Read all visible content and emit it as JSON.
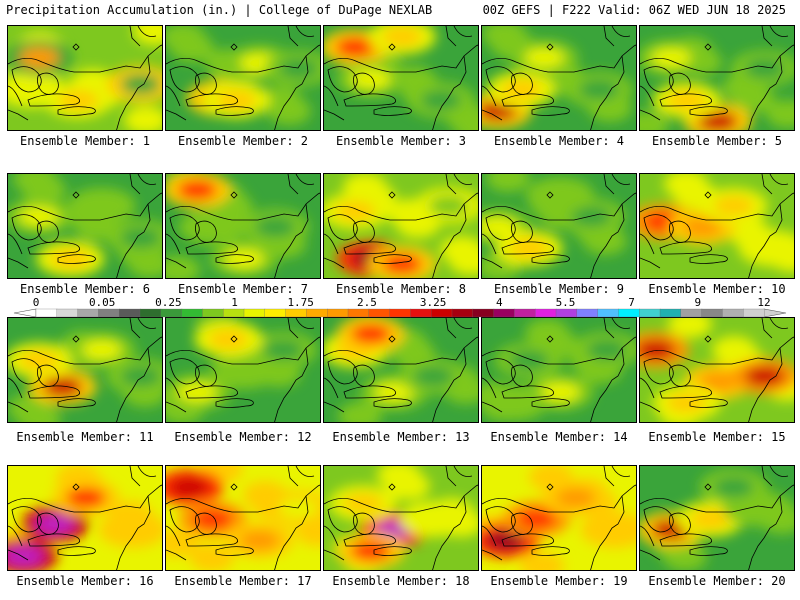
{
  "header": {
    "title": "Precipitation Accumulation (in.) | College of DuPage NEXLAB",
    "run_info": "00Z GEFS | F222 Valid: 06Z WED JUN 18 2025"
  },
  "caption_prefix": "Ensemble Member: ",
  "members": [
    {
      "label": "Ensemble Member: 1",
      "palette": [
        "#7ec81f",
        "#e9f400",
        "#ffcc00",
        "#3aa43a",
        "#ff9a00"
      ],
      "blobs": [
        [
          0.15,
          0.6,
          1
        ],
        [
          0.45,
          0.7,
          2
        ],
        [
          0.2,
          0.3,
          4
        ],
        [
          0.85,
          0.55,
          3
        ]
      ]
    },
    {
      "label": "Ensemble Member: 2",
      "palette": [
        "#3aa43a",
        "#7ec81f",
        "#e9f400",
        "#ffcc00",
        "#d01818"
      ],
      "blobs": [
        [
          0.35,
          0.68,
          4
        ],
        [
          0.45,
          0.7,
          3
        ],
        [
          0.6,
          0.35,
          2
        ],
        [
          0.85,
          0.4,
          0
        ]
      ]
    },
    {
      "label": "Ensemble Member: 3",
      "palette": [
        "#3aa43a",
        "#7ec81f",
        "#e9f400",
        "#ffcc00",
        "#ff3300"
      ],
      "blobs": [
        [
          0.2,
          0.2,
          4
        ],
        [
          0.5,
          0.1,
          3
        ],
        [
          0.3,
          0.5,
          2
        ],
        [
          0.75,
          0.7,
          0
        ]
      ]
    },
    {
      "label": "Ensemble Member: 4",
      "palette": [
        "#3aa43a",
        "#7ec81f",
        "#e9f400",
        "#ffcc00",
        "#cc0000"
      ],
      "blobs": [
        [
          0.1,
          0.8,
          4
        ],
        [
          0.25,
          0.6,
          3
        ],
        [
          0.4,
          0.3,
          2
        ],
        [
          0.75,
          0.6,
          0
        ]
      ]
    },
    {
      "label": "Ensemble Member: 5",
      "palette": [
        "#3aa43a",
        "#7ec81f",
        "#e9f400",
        "#ffcc00",
        "#cc0000"
      ],
      "blobs": [
        [
          0.5,
          0.9,
          4
        ],
        [
          0.3,
          0.7,
          3
        ],
        [
          0.2,
          0.3,
          2
        ],
        [
          0.8,
          0.4,
          0
        ]
      ]
    },
    {
      "label": "Ensemble Member: 6",
      "palette": [
        "#3aa43a",
        "#7ec81f",
        "#e9f400",
        "#ffcc00",
        "#ff9a00"
      ],
      "blobs": [
        [
          0.2,
          0.4,
          2
        ],
        [
          0.6,
          0.3,
          1
        ],
        [
          0.4,
          0.8,
          3
        ],
        [
          0.85,
          0.6,
          0
        ]
      ]
    },
    {
      "label": "Ensemble Member: 7",
      "palette": [
        "#3aa43a",
        "#7ec81f",
        "#e9f400",
        "#ffcc00",
        "#ff3300"
      ],
      "blobs": [
        [
          0.2,
          0.15,
          4
        ],
        [
          0.3,
          0.5,
          1
        ],
        [
          0.7,
          0.5,
          0
        ],
        [
          0.5,
          0.8,
          2
        ]
      ]
    },
    {
      "label": "Ensemble Member: 8",
      "palette": [
        "#7ec81f",
        "#e9f400",
        "#ffcc00",
        "#ff3300",
        "#990020"
      ],
      "blobs": [
        [
          0.3,
          0.8,
          4
        ],
        [
          0.5,
          0.85,
          3
        ],
        [
          0.2,
          0.35,
          2
        ],
        [
          0.8,
          0.3,
          0
        ]
      ]
    },
    {
      "label": "Ensemble Member: 9",
      "palette": [
        "#3aa43a",
        "#7ec81f",
        "#e9f400",
        "#ffcc00",
        "#ff9a00"
      ],
      "blobs": [
        [
          0.1,
          0.5,
          2
        ],
        [
          0.3,
          0.7,
          3
        ],
        [
          0.7,
          0.4,
          0
        ],
        [
          0.5,
          0.2,
          1
        ]
      ]
    },
    {
      "label": "Ensemble Member: 10",
      "palette": [
        "#7ec81f",
        "#e9f400",
        "#ffcc00",
        "#ff9a00",
        "#ff3300"
      ],
      "blobs": [
        [
          0.15,
          0.45,
          4
        ],
        [
          0.4,
          0.5,
          3
        ],
        [
          0.6,
          0.3,
          2
        ],
        [
          0.85,
          0.7,
          1
        ]
      ]
    },
    {
      "label": "Ensemble Member: 11",
      "palette": [
        "#3aa43a",
        "#7ec81f",
        "#e9f400",
        "#ffcc00",
        "#cc0000"
      ],
      "blobs": [
        [
          0.35,
          0.65,
          4
        ],
        [
          0.2,
          0.4,
          3
        ],
        [
          0.6,
          0.3,
          2
        ],
        [
          0.85,
          0.55,
          0
        ]
      ]
    },
    {
      "label": "Ensemble Member: 12",
      "palette": [
        "#3aa43a",
        "#7ec81f",
        "#e9f400",
        "#ffcc00",
        "#ff9a00"
      ],
      "blobs": [
        [
          0.2,
          0.7,
          2
        ],
        [
          0.5,
          0.5,
          1
        ],
        [
          0.75,
          0.3,
          0
        ],
        [
          0.4,
          0.2,
          3
        ]
      ]
    },
    {
      "label": "Ensemble Member: 13",
      "palette": [
        "#3aa43a",
        "#7ec81f",
        "#e9f400",
        "#ffcc00",
        "#ff3300"
      ],
      "blobs": [
        [
          0.2,
          0.3,
          3
        ],
        [
          0.45,
          0.7,
          2
        ],
        [
          0.7,
          0.55,
          0
        ],
        [
          0.3,
          0.15,
          4
        ]
      ]
    },
    {
      "label": "Ensemble Member: 14",
      "palette": [
        "#3aa43a",
        "#7ec81f",
        "#e9f400",
        "#ffcc00",
        "#ff9a00"
      ],
      "blobs": [
        [
          0.3,
          0.4,
          0
        ],
        [
          0.5,
          0.7,
          2
        ],
        [
          0.2,
          0.8,
          1
        ],
        [
          0.8,
          0.3,
          0
        ]
      ]
    },
    {
      "label": "Ensemble Member: 15",
      "palette": [
        "#7ec81f",
        "#e9f400",
        "#ffcc00",
        "#ff9a00",
        "#cc0000"
      ],
      "blobs": [
        [
          0.1,
          0.3,
          4
        ],
        [
          0.5,
          0.6,
          3
        ],
        [
          0.8,
          0.55,
          4
        ],
        [
          0.3,
          0.8,
          2
        ]
      ]
    },
    {
      "label": "Ensemble Member: 16",
      "palette": [
        "#e9f400",
        "#ffcc00",
        "#ff3300",
        "#cc0000",
        "#c020c0"
      ],
      "blobs": [
        [
          0.3,
          0.55,
          4
        ],
        [
          0.1,
          0.85,
          4
        ],
        [
          0.5,
          0.3,
          2
        ],
        [
          0.8,
          0.6,
          1
        ]
      ]
    },
    {
      "label": "Ensemble Member: 17",
      "palette": [
        "#e9f400",
        "#ffcc00",
        "#ff9a00",
        "#ff3300",
        "#cc0000"
      ],
      "blobs": [
        [
          0.15,
          0.2,
          4
        ],
        [
          0.3,
          0.5,
          3
        ],
        [
          0.6,
          0.7,
          2
        ],
        [
          0.85,
          0.4,
          0
        ]
      ]
    },
    {
      "label": "Ensemble Member: 18",
      "palette": [
        "#7ec81f",
        "#e9f400",
        "#ffcc00",
        "#ff3300",
        "#c020c0"
      ],
      "blobs": [
        [
          0.45,
          0.6,
          4
        ],
        [
          0.25,
          0.35,
          2
        ],
        [
          0.7,
          0.5,
          1
        ],
        [
          0.3,
          0.8,
          3
        ]
      ]
    },
    {
      "label": "Ensemble Member: 19",
      "palette": [
        "#e9f400",
        "#ffcc00",
        "#ff9a00",
        "#ff3300",
        "#990020"
      ],
      "blobs": [
        [
          0.15,
          0.7,
          4
        ],
        [
          0.35,
          0.5,
          3
        ],
        [
          0.6,
          0.3,
          2
        ],
        [
          0.85,
          0.6,
          1
        ]
      ]
    },
    {
      "label": "Ensemble Member: 20",
      "palette": [
        "#3aa43a",
        "#7ec81f",
        "#e9f400",
        "#ffcc00",
        "#cc0000"
      ],
      "blobs": [
        [
          0.2,
          0.6,
          4
        ],
        [
          0.45,
          0.5,
          3
        ],
        [
          0.75,
          0.4,
          1
        ],
        [
          0.6,
          0.2,
          0
        ]
      ]
    }
  ],
  "colorbar": {
    "tick_labels": [
      "0",
      "0.05",
      "0.25",
      "1",
      "1.75",
      "2.5",
      "3.25",
      "4",
      "5.5",
      "7",
      "9",
      "12"
    ],
    "colors": [
      "#ffffff",
      "#d8d8d8",
      "#a8a8a8",
      "#808080",
      "#5a5a5a",
      "#2e6e2e",
      "#3a9a3a",
      "#33bb33",
      "#7ec81f",
      "#b8e010",
      "#e9f400",
      "#ffee00",
      "#ffcc00",
      "#ffaa00",
      "#ff9a00",
      "#ff7700",
      "#ff5500",
      "#ff3300",
      "#e61010",
      "#cc0000",
      "#a80010",
      "#880020",
      "#990060",
      "#c020a0",
      "#e020e0",
      "#b040e0",
      "#8080ff",
      "#50c0ff",
      "#00eeff",
      "#40d0d0",
      "#20b0b0",
      "#a0a0a0",
      "#888888",
      "#b0b0b0",
      "#d0d0d0"
    ]
  }
}
